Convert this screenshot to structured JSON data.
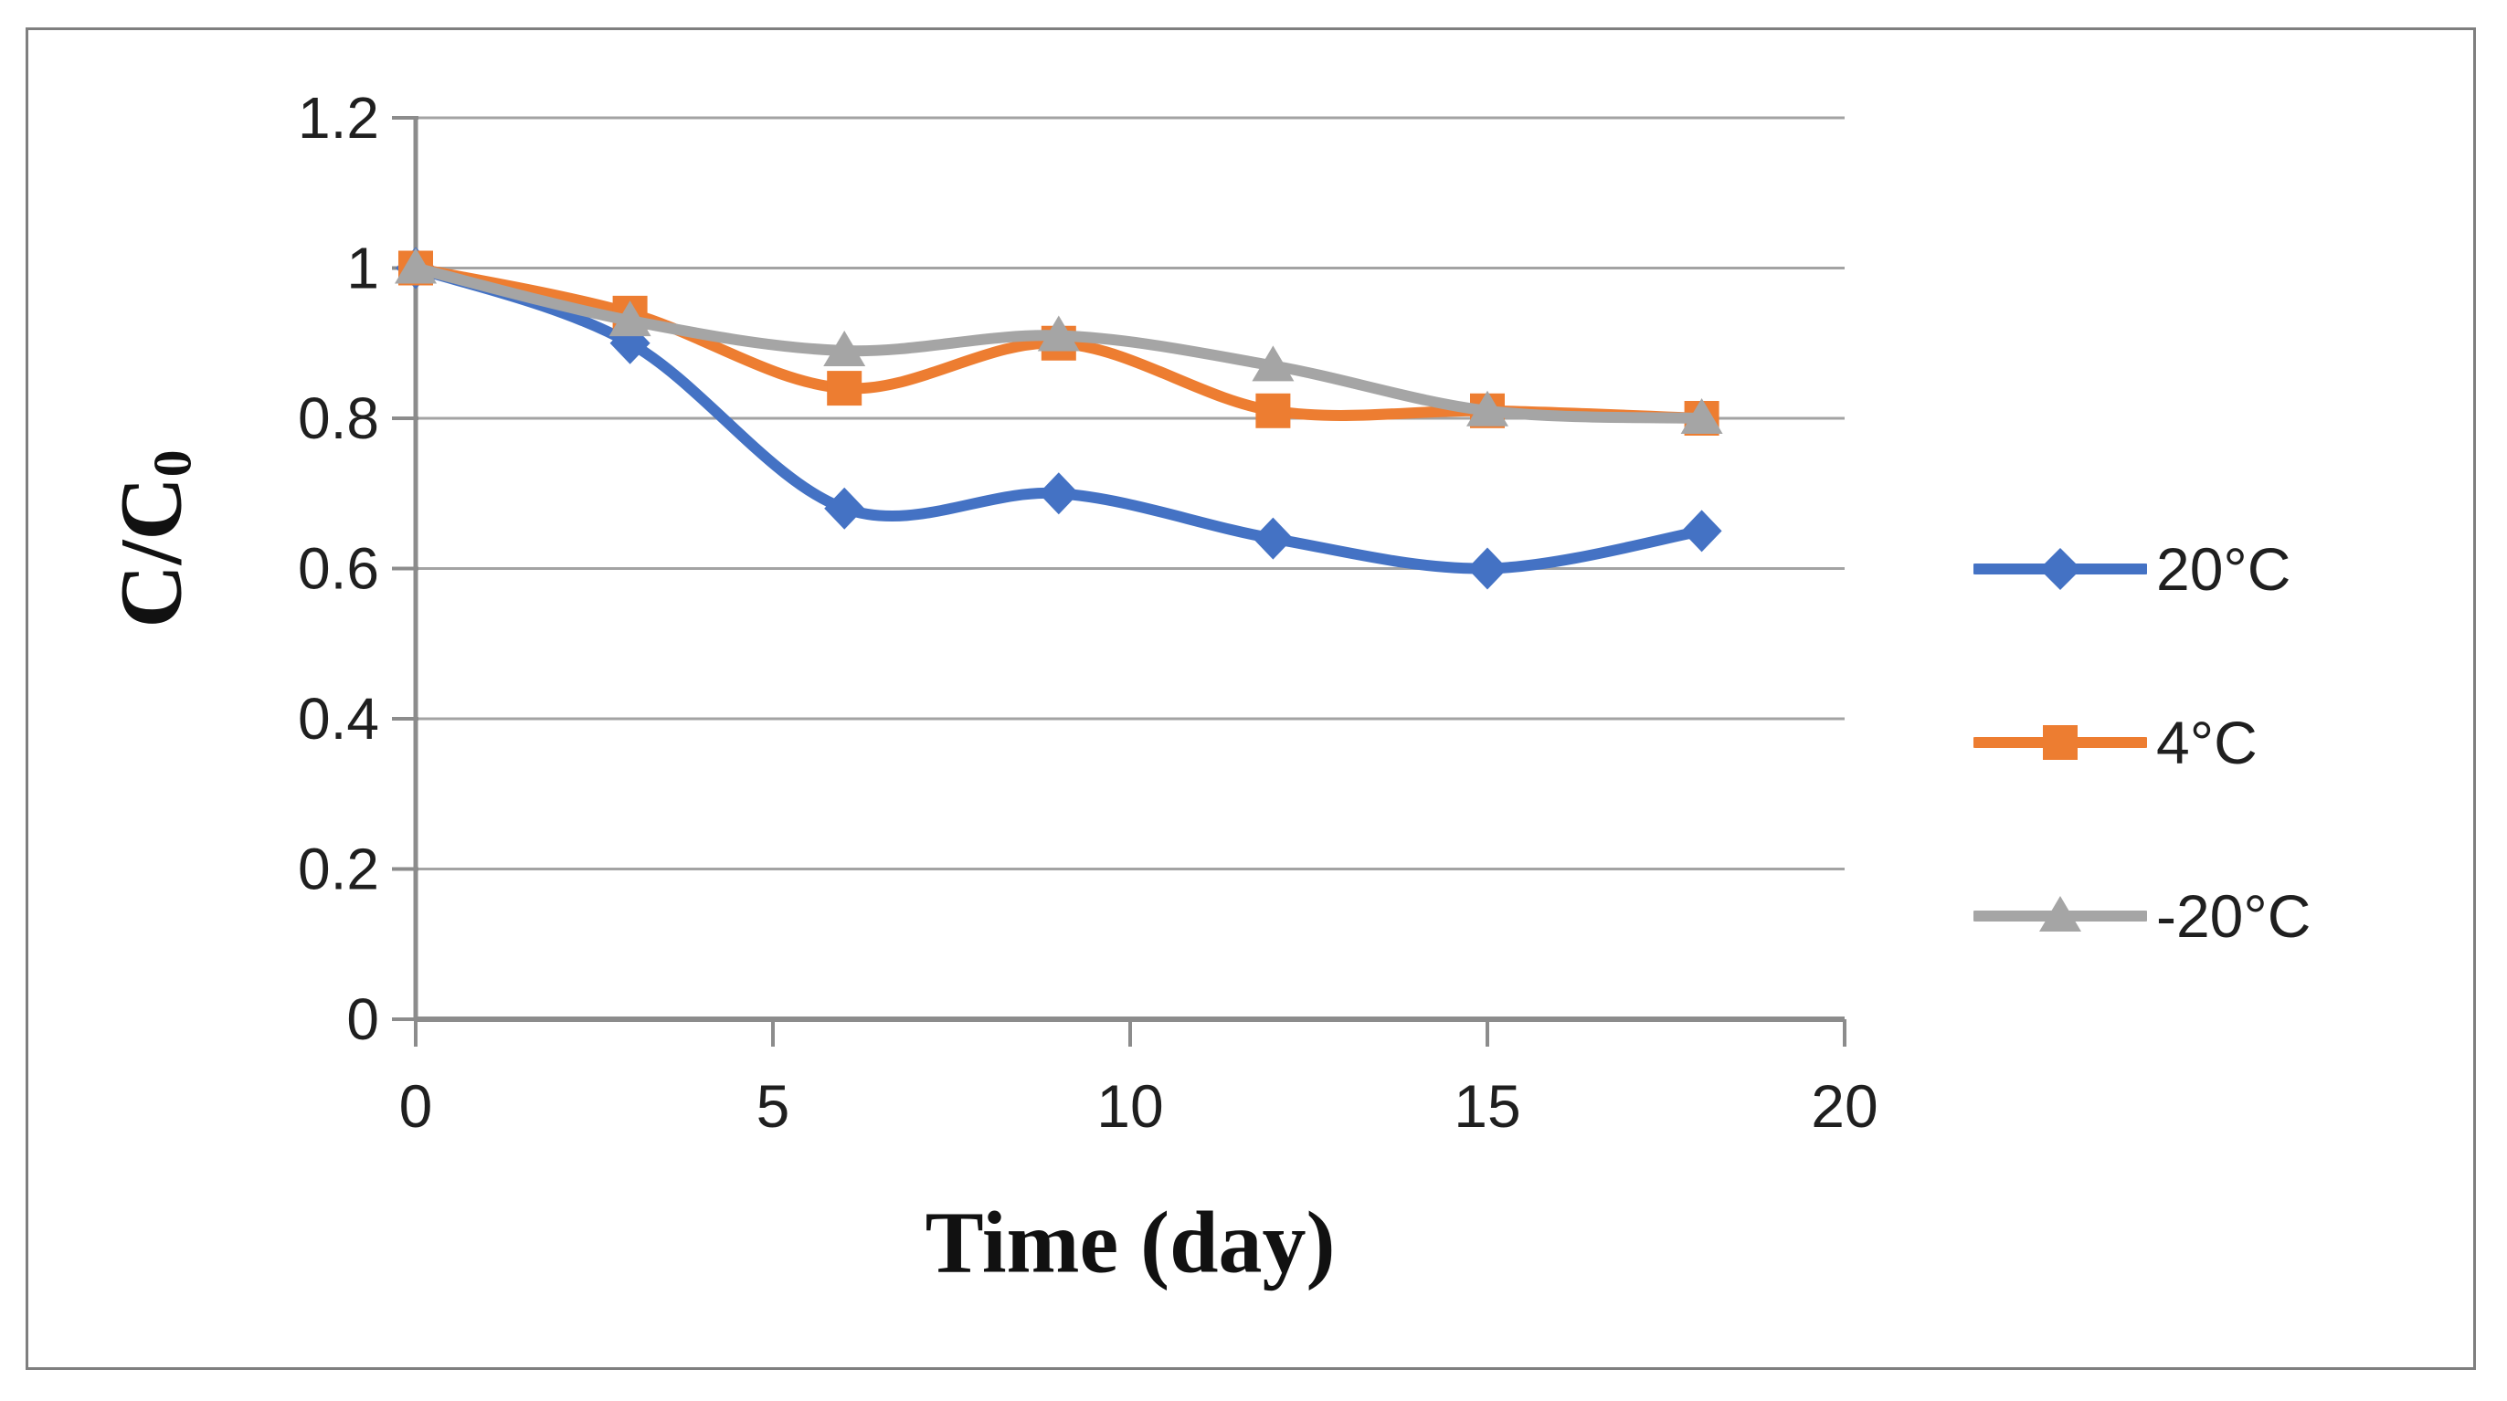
{
  "chart_data": {
    "type": "line",
    "title": "",
    "xlabel": "Time (day)",
    "ylabel": "C/C0",
    "ylabel_main": "C/C",
    "ylabel_sub": "0",
    "x": [
      0,
      3,
      6,
      9,
      12,
      15,
      18
    ],
    "series": [
      {
        "name": "20°C",
        "color": "#4472C4",
        "marker": "diamond",
        "values": [
          1.0,
          0.9,
          0.68,
          0.7,
          0.64,
          0.6,
          0.65
        ]
      },
      {
        "name": "4°C",
        "color": "#ED7D31",
        "marker": "square",
        "values": [
          1.0,
          0.94,
          0.84,
          0.9,
          0.81,
          0.81,
          0.8
        ]
      },
      {
        "name": "-20°C",
        "color": "#A5A5A5",
        "marker": "triangle",
        "values": [
          1.0,
          0.93,
          0.89,
          0.91,
          0.87,
          0.81,
          0.8
        ]
      }
    ],
    "xlim": [
      0,
      20
    ],
    "ylim": [
      0,
      1.2
    ],
    "xtick_labels": [
      "0",
      "5",
      "10",
      "15",
      "20"
    ],
    "ytick_labels": [
      "0",
      "0.2",
      "0.4",
      "0.6",
      "0.8",
      "1",
      "1.2"
    ],
    "grid": "horizontal",
    "legend_position": "right",
    "line_smoothing": true,
    "colors": {
      "axis": "#8c8c8c",
      "gridline": "#a3a3a3",
      "tick_text": "#1f1f1f",
      "frame_border": "#7f7f7f",
      "background": "#ffffff"
    }
  }
}
